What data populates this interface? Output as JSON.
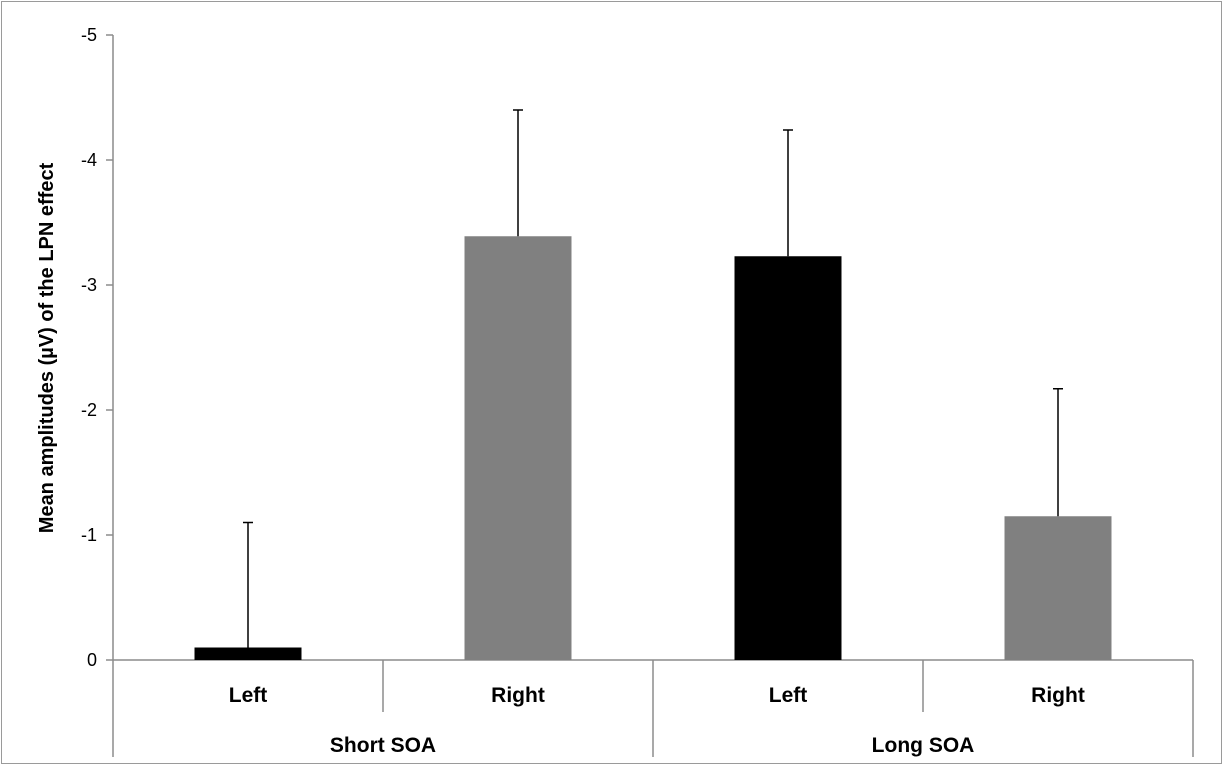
{
  "chart_data": {
    "type": "bar",
    "title": "",
    "ylabel": "Mean amplitudes (µV) of the LPN effect",
    "xlabel": "",
    "ylim": [
      0,
      -5
    ],
    "y_axis_inverted": true,
    "yticks": [
      "-5",
      "-4",
      "-3",
      "-2",
      "-1",
      "0"
    ],
    "grid": false,
    "legend": "none",
    "groups": [
      {
        "label": "Short SOA",
        "bars": [
          {
            "label": "Left",
            "value": -0.1,
            "error": 1.0,
            "color": "#000000"
          },
          {
            "label": "Right",
            "value": -3.39,
            "error": 1.01,
            "color": "#808080"
          }
        ]
      },
      {
        "label": "Long SOA",
        "bars": [
          {
            "label": "Left",
            "value": -3.23,
            "error": 1.01,
            "color": "#000000"
          },
          {
            "label": "Right",
            "value": -1.15,
            "error": 1.02,
            "color": "#808080"
          }
        ]
      }
    ]
  }
}
